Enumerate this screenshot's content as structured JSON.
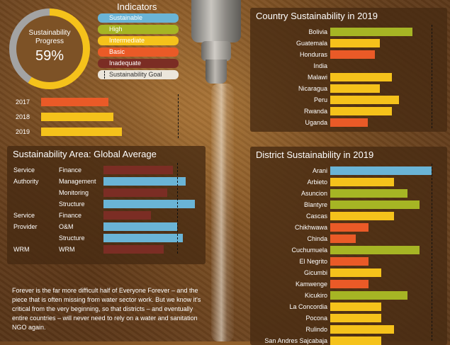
{
  "colors": {
    "sustainable": "#6ab4d6",
    "high": "#a6b524",
    "intermediate": "#f5c21b",
    "basic": "#ea5a27",
    "inadequate": "#7b2d24",
    "donut_track": "#a3a3a3",
    "donut_fill": "#f5c21b"
  },
  "progress": {
    "label_line1": "Sustainability",
    "label_line2": "Progress",
    "value": "59%",
    "fraction": 0.59
  },
  "legend": {
    "title": "Indicators",
    "items": [
      {
        "label": "Sustainable",
        "color": "#6ab4d6",
        "text_color": "#fff"
      },
      {
        "label": "High",
        "color": "#a6b524",
        "text_color": "#fff"
      },
      {
        "label": "Intermediate",
        "color": "#f5c21b",
        "text_color": "#fff"
      },
      {
        "label": "Basic",
        "color": "#ea5a27",
        "text_color": "#fff"
      },
      {
        "label": "Inadequate",
        "color": "#7b2d24",
        "text_color": "#fff"
      },
      {
        "label": "Sustainability Goal",
        "color": "#ebe6dc",
        "text_color": "#333"
      }
    ]
  },
  "years": [
    {
      "label": "2017",
      "level": "basic",
      "value": 0.49
    },
    {
      "label": "2018",
      "level": "intermediate",
      "value": 0.53
    },
    {
      "label": "2019",
      "level": "intermediate",
      "value": 0.59
    }
  ],
  "area": {
    "title": "Sustainability Area: Global Average",
    "rows": [
      {
        "group": "Service",
        "sub": "Finance",
        "level": "inadequate",
        "value": 0.76
      },
      {
        "group": "Authority",
        "sub": "Management",
        "level": "sustainable",
        "value": 0.9
      },
      {
        "group": "",
        "sub": "Monitoring",
        "level": "inadequate",
        "value": 0.7
      },
      {
        "group": "",
        "sub": "Structure",
        "level": "sustainable",
        "value": 1.0
      },
      {
        "group": "Service",
        "sub": "Finance",
        "level": "inadequate",
        "value": 0.52
      },
      {
        "group": "Provider",
        "sub": "O&M",
        "level": "sustainable",
        "value": 0.81
      },
      {
        "group": "",
        "sub": "Structure",
        "level": "sustainable",
        "value": 0.87
      },
      {
        "group": "WRM",
        "sub": "WRM",
        "level": "inadequate",
        "value": 0.66
      }
    ]
  },
  "country": {
    "title": "Country Sustainability in 2019",
    "rows": [
      {
        "label": "Bolivia",
        "level": "high",
        "value": 0.83
      },
      {
        "label": "Guatemala",
        "level": "intermediate",
        "value": 0.5
      },
      {
        "label": "Honduras",
        "level": "basic",
        "value": 0.45
      },
      {
        "label": "India",
        "level": "none",
        "value": 0
      },
      {
        "label": "Malawi",
        "level": "intermediate",
        "value": 0.62
      },
      {
        "label": "Nicaragua",
        "level": "intermediate",
        "value": 0.5
      },
      {
        "label": "Peru",
        "level": "intermediate",
        "value": 0.69
      },
      {
        "label": "Rwanda",
        "level": "intermediate",
        "value": 0.62
      },
      {
        "label": "Uganda",
        "level": "basic",
        "value": 0.38
      }
    ]
  },
  "district": {
    "title": "District Sustainability in 2019",
    "rows": [
      {
        "label": "Arani",
        "level": "sustainable",
        "value": 1.0
      },
      {
        "label": "Arbieto",
        "level": "intermediate",
        "value": 0.63
      },
      {
        "label": "Asuncion",
        "level": "high",
        "value": 0.76
      },
      {
        "label": "Blantyre",
        "level": "high",
        "value": 0.88
      },
      {
        "label": "Cascas",
        "level": "intermediate",
        "value": 0.63
      },
      {
        "label": "Chikhwawa",
        "level": "basic",
        "value": 0.38
      },
      {
        "label": "Chinda",
        "level": "basic",
        "value": 0.25
      },
      {
        "label": "Cuchumuela",
        "level": "high",
        "value": 0.88
      },
      {
        "label": "El Negrito",
        "level": "basic",
        "value": 0.38
      },
      {
        "label": "Gicumbi",
        "level": "intermediate",
        "value": 0.5
      },
      {
        "label": "Kamwenge",
        "level": "basic",
        "value": 0.38
      },
      {
        "label": "Kicukiro",
        "level": "high",
        "value": 0.76
      },
      {
        "label": "La Concordia",
        "level": "intermediate",
        "value": 0.5
      },
      {
        "label": "Pocona",
        "level": "intermediate",
        "value": 0.5
      },
      {
        "label": "Rulindo",
        "level": "intermediate",
        "value": 0.63
      },
      {
        "label": "San Andres Sajcabaja",
        "level": "intermediate",
        "value": 0.5
      }
    ]
  },
  "description": "Forever is the far more difficult half of Everyone Forever – and the piece that is often missing from water sector work. But we know it's critical from the very beginning, so that districts – and eventually entire countries – will never need to rely on a water and sanitation NGO again."
}
